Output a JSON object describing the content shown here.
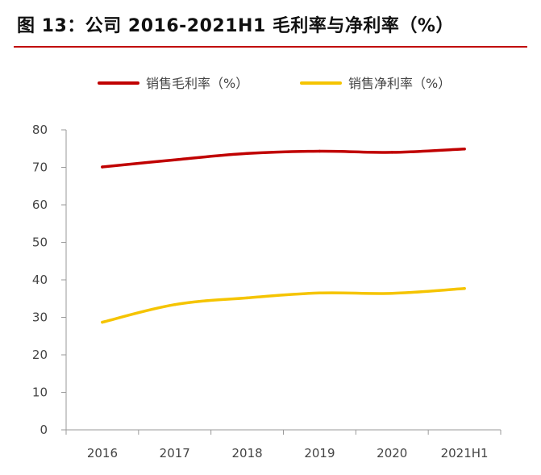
{
  "figure": {
    "title": "图 13：公司 2016-2021H1 毛利率与净利率（%）"
  },
  "chart_data": {
    "type": "line",
    "categories": [
      "2016",
      "2017",
      "2018",
      "2019",
      "2020",
      "2021H1"
    ],
    "series": [
      {
        "name": "销售毛利率（%）",
        "color": "#c00000",
        "values": [
          70.1,
          72.0,
          73.7,
          74.3,
          74.0,
          74.9
        ]
      },
      {
        "name": "销售净利率（%）",
        "color": "#f5c400",
        "values": [
          28.7,
          33.4,
          35.2,
          36.5,
          36.4,
          37.7
        ]
      }
    ],
    "yticks": [
      0,
      10,
      20,
      30,
      40,
      50,
      60,
      70,
      80
    ],
    "ylim": [
      0,
      80
    ],
    "legend_position": "top-center",
    "grid": false
  }
}
